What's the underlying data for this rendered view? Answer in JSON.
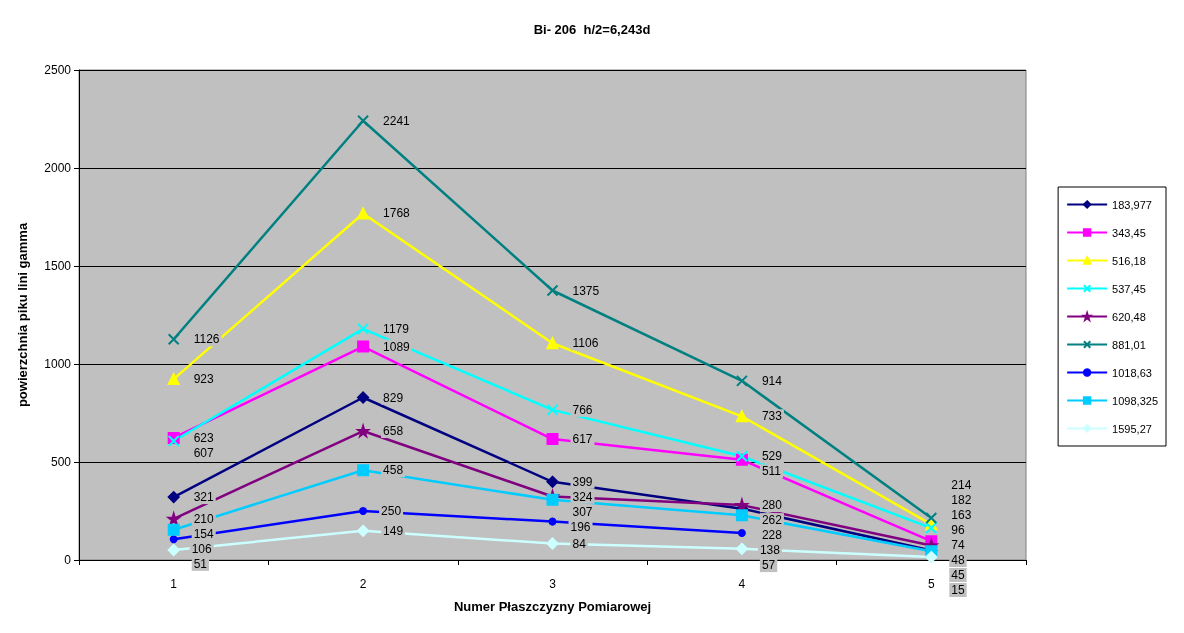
{
  "chart_data": {
    "type": "line",
    "title": "Bi- 206  h/2=6,243d",
    "xlabel": "Numer Płaszczyzny Pomiarowej",
    "ylabel": "powierzchnia piku lini gamma",
    "categories": [
      "1",
      "2",
      "3",
      "4",
      "5"
    ],
    "ylim": [
      0,
      2500
    ],
    "yticks": [
      0,
      500,
      1000,
      1500,
      2000,
      2500
    ],
    "grid": "y",
    "legend": "right",
    "data_labels": true,
    "series": [
      {
        "name": "183,977",
        "color": "#000080",
        "marker": "diamond",
        "values": [
          321,
          829,
          399,
          262,
          48
        ]
      },
      {
        "name": "343,45",
        "color": "#ff00ff",
        "marker": "square",
        "values": [
          623,
          1089,
          617,
          511,
          96
        ]
      },
      {
        "name": "516,18",
        "color": "#ffff00",
        "marker": "triangle",
        "values": [
          923,
          1768,
          1106,
          733,
          182
        ]
      },
      {
        "name": "537,45",
        "color": "#00ffff",
        "marker": "cross",
        "values": [
          607,
          1179,
          766,
          529,
          163
        ]
      },
      {
        "name": "620,48",
        "color": "#800080",
        "marker": "star",
        "values": [
          210,
          658,
          324,
          280,
          74
        ]
      },
      {
        "name": "881,01",
        "color": "#008080",
        "marker": "cross",
        "values": [
          1126,
          2241,
          1375,
          914,
          214
        ]
      },
      {
        "name": "1018,63",
        "color": "#0000ff",
        "marker": "circle",
        "values": [
          106,
          250,
          196,
          138,
          null
        ]
      },
      {
        "name": "1098,325",
        "color": "#00ccff",
        "marker": "square",
        "values": [
          154,
          458,
          307,
          228,
          45
        ]
      },
      {
        "name": "1595,27",
        "color": "#ccffff",
        "marker": "diamond",
        "values": [
          51,
          149,
          84,
          57,
          15
        ]
      }
    ]
  }
}
